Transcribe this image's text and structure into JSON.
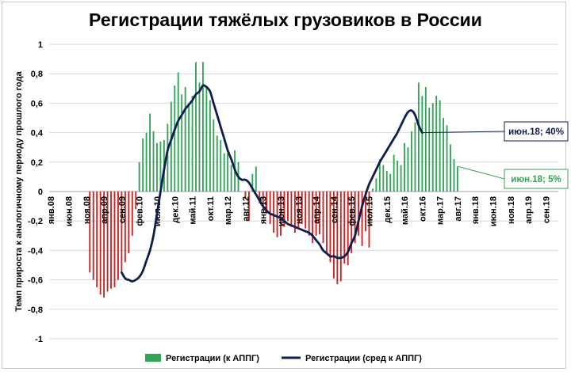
{
  "chart_data": {
    "type": "bar",
    "title": "Регистрации тяжёлых грузовиков в России",
    "xlabel": "",
    "ylabel": "Темп прироста к аналогичному периоду прошлого года",
    "ylim": [
      -1,
      1
    ],
    "yticks": [
      1,
      0.8,
      0.6,
      0.4,
      0.2,
      0,
      -0.2,
      -0.4,
      -0.6,
      -0.8,
      -1
    ],
    "ytick_labels": [
      "1",
      "0,8",
      "0,6",
      "0,4",
      "0,2",
      "0",
      "-0,2",
      "-0,4",
      "-0,6",
      "-0,8",
      "-1"
    ],
    "x_range": [
      "янв.08",
      "дек.19"
    ],
    "x_tick_labels": [
      "янв.08",
      "июн.08",
      "ноя.08",
      "апр.09",
      "сен.09",
      "фев.10",
      "июл.10",
      "дек.10",
      "май.11",
      "окт.11",
      "мар.12",
      "авг.12",
      "янв.13",
      "июн.13",
      "ноя.13",
      "апр.14",
      "сен.14",
      "фев.15",
      "июл.15",
      "дек.15",
      "май.16",
      "окт.16",
      "мар.17",
      "авг.17",
      "янв.18",
      "июн.18",
      "ноя.18",
      "апр.19",
      "сен.19"
    ],
    "grid": true,
    "legend_position": "bottom",
    "positive_color": "#33a457",
    "negative_color": "#cc2222",
    "line_color": "#0e1e50",
    "series": [
      {
        "name": "Регистрации (к АППГ)",
        "kind": "bar",
        "start_month": "дек.08",
        "values": [
          -0.55,
          -0.6,
          -0.65,
          -0.7,
          -0.72,
          -0.68,
          -0.66,
          -0.65,
          -0.6,
          -0.55,
          -0.48,
          -0.42,
          -0.3,
          -0.12,
          0.2,
          0.36,
          0.4,
          0.53,
          0.41,
          0.33,
          0.34,
          0.35,
          0.46,
          0.61,
          0.72,
          0.81,
          0.66,
          0.71,
          0.6,
          0.65,
          0.88,
          0.74,
          0.88,
          0.71,
          0.62,
          0.49,
          0.38,
          0.35,
          0.26,
          0.26,
          0.18,
          0.28,
          0.2,
          0,
          -0.05,
          -0.2,
          0.12,
          0.17,
          -0.08,
          -0.12,
          -0.15,
          -0.22,
          -0.28,
          -0.31,
          -0.3,
          -0.24,
          -0.2,
          -0.24,
          -0.28,
          -0.25,
          -0.22,
          -0.25,
          -0.3,
          -0.35,
          -0.3,
          -0.29,
          -0.35,
          -0.42,
          -0.48,
          -0.59,
          -0.63,
          -0.61,
          -0.49,
          -0.5,
          -0.42,
          -0.35,
          -0.3,
          -0.37,
          -0.27,
          -0.38,
          0.02,
          0.09,
          0.22,
          0.18,
          0.14,
          0.12,
          0.25,
          0.21,
          0.18,
          0.33,
          0.3,
          0.41,
          0.47,
          0.74,
          0.65,
          0.71,
          0.57,
          0.6,
          0.65,
          0.62,
          0.5,
          0.45,
          0.32,
          0.22,
          0.17
        ]
      },
      {
        "name": "Регистрации (сред к АППГ)",
        "kind": "line",
        "start_month": "сен.09",
        "values": [
          -0.55,
          -0.59,
          -0.6,
          -0.61,
          -0.6,
          -0.58,
          -0.54,
          -0.47,
          -0.4,
          -0.3,
          -0.15,
          0,
          0.15,
          0.28,
          0.35,
          0.42,
          0.48,
          0.52,
          0.56,
          0.59,
          0.62,
          0.66,
          0.68,
          0.72,
          0.71,
          0.68,
          0.6,
          0.52,
          0.44,
          0.36,
          0.28,
          0.22,
          0.15,
          0.1,
          0.08,
          0.08,
          0.06,
          0.02,
          -0.02,
          -0.06,
          -0.1,
          -0.13,
          -0.15,
          -0.16,
          -0.17,
          -0.18,
          -0.2,
          -0.22,
          -0.23,
          -0.24,
          -0.25,
          -0.26,
          -0.27,
          -0.28,
          -0.3,
          -0.33,
          -0.36,
          -0.4,
          -0.42,
          -0.44,
          -0.44,
          -0.45,
          -0.45,
          -0.44,
          -0.41,
          -0.35,
          -0.3,
          -0.2,
          -0.1,
          -0.02,
          0.05,
          0.1,
          0.15,
          0.2,
          0.24,
          0.28,
          0.32,
          0.36,
          0.4,
          0.45,
          0.5,
          0.54,
          0.55,
          0.52,
          0.45,
          0.4
        ]
      }
    ],
    "annotations": [
      {
        "text": "июн.18; 40%",
        "series": "Регистрации (сред к АППГ)"
      },
      {
        "text": "июн.18; 5%",
        "series": "Регистрации (к АППГ)"
      }
    ]
  }
}
